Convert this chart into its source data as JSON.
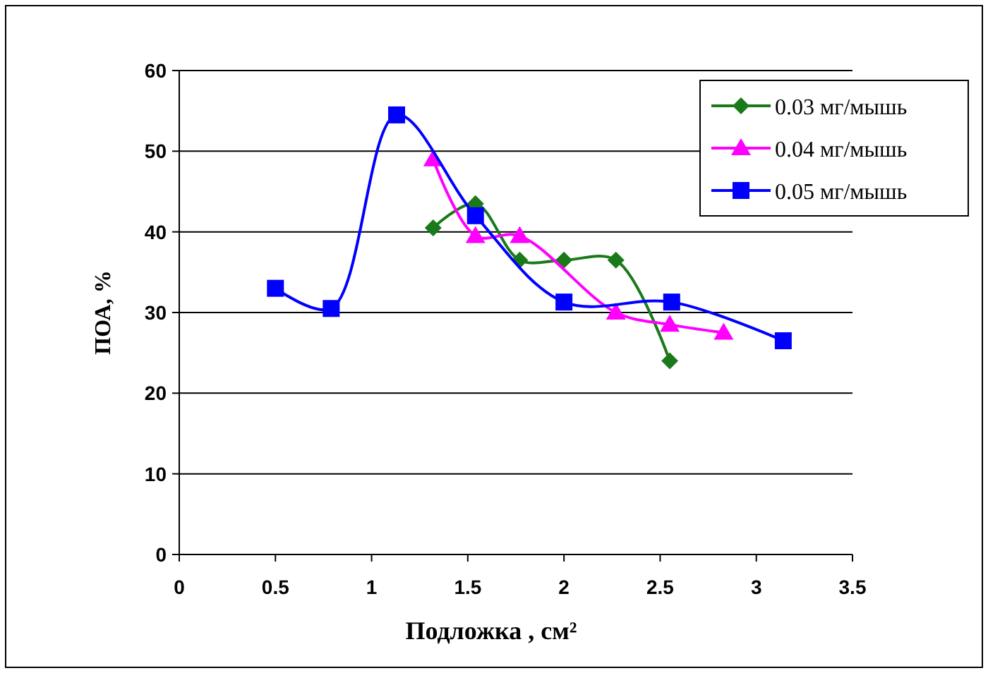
{
  "chart_data": {
    "type": "line",
    "xlabel": "Подложка , см²",
    "ylabel": "ПОА, %",
    "xlim": [
      0,
      3.5
    ],
    "xticks": [
      0,
      0.5,
      1,
      1.5,
      2,
      2.5,
      3,
      3.5
    ],
    "ylim": [
      0,
      60
    ],
    "yticks": [
      0,
      10,
      20,
      30,
      40,
      50,
      60
    ],
    "grid": "y",
    "legend": "top right",
    "series": [
      {
        "name": "0.03 мг/мышь",
        "color": "#1a7a1a",
        "marker": "diamond",
        "x": [
          1.32,
          1.54,
          1.77,
          2.0,
          2.27,
          2.55
        ],
        "values": [
          40.5,
          43.5,
          36.5,
          36.5,
          36.5,
          24
        ]
      },
      {
        "name": "0.04 мг/мышь",
        "color": "#ff00ff",
        "marker": "triangle",
        "x": [
          1.32,
          1.54,
          1.77,
          2.27,
          2.55,
          2.83
        ],
        "values": [
          49,
          39.5,
          39.5,
          30,
          28.5,
          27.5
        ]
      },
      {
        "name": "0.05 мг/мышь",
        "color": "#0000ff",
        "marker": "square",
        "x": [
          0.5,
          0.79,
          1.13,
          1.54,
          2.0,
          2.56,
          3.14
        ],
        "values": [
          33,
          30.5,
          54.5,
          42,
          31.3,
          31.3,
          26.5
        ]
      }
    ]
  }
}
